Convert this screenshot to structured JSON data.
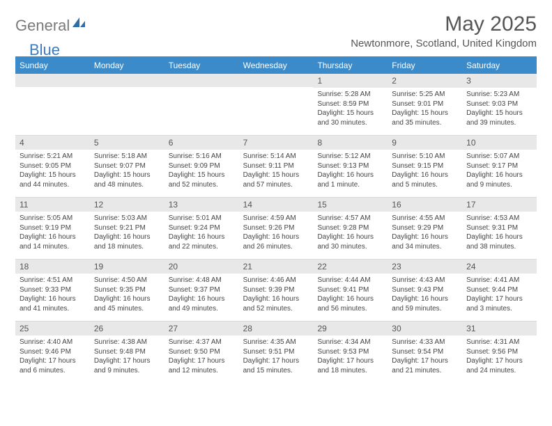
{
  "logo": {
    "general": "General",
    "blue": "Blue"
  },
  "title": "May 2025",
  "location": "Newtonmore, Scotland, United Kingdom",
  "day_names": [
    "Sunday",
    "Monday",
    "Tuesday",
    "Wednesday",
    "Thursday",
    "Friday",
    "Saturday"
  ],
  "header_bg": "#3b8bca",
  "cell_num_bg": "#e8e8e8",
  "weeks": [
    [
      {
        "day": "",
        "sunrise": "",
        "sunset": "",
        "daylight": ""
      },
      {
        "day": "",
        "sunrise": "",
        "sunset": "",
        "daylight": ""
      },
      {
        "day": "",
        "sunrise": "",
        "sunset": "",
        "daylight": ""
      },
      {
        "day": "",
        "sunrise": "",
        "sunset": "",
        "daylight": ""
      },
      {
        "day": "1",
        "sunrise": "Sunrise: 5:28 AM",
        "sunset": "Sunset: 8:59 PM",
        "daylight": "Daylight: 15 hours and 30 minutes."
      },
      {
        "day": "2",
        "sunrise": "Sunrise: 5:25 AM",
        "sunset": "Sunset: 9:01 PM",
        "daylight": "Daylight: 15 hours and 35 minutes."
      },
      {
        "day": "3",
        "sunrise": "Sunrise: 5:23 AM",
        "sunset": "Sunset: 9:03 PM",
        "daylight": "Daylight: 15 hours and 39 minutes."
      }
    ],
    [
      {
        "day": "4",
        "sunrise": "Sunrise: 5:21 AM",
        "sunset": "Sunset: 9:05 PM",
        "daylight": "Daylight: 15 hours and 44 minutes."
      },
      {
        "day": "5",
        "sunrise": "Sunrise: 5:18 AM",
        "sunset": "Sunset: 9:07 PM",
        "daylight": "Daylight: 15 hours and 48 minutes."
      },
      {
        "day": "6",
        "sunrise": "Sunrise: 5:16 AM",
        "sunset": "Sunset: 9:09 PM",
        "daylight": "Daylight: 15 hours and 52 minutes."
      },
      {
        "day": "7",
        "sunrise": "Sunrise: 5:14 AM",
        "sunset": "Sunset: 9:11 PM",
        "daylight": "Daylight: 15 hours and 57 minutes."
      },
      {
        "day": "8",
        "sunrise": "Sunrise: 5:12 AM",
        "sunset": "Sunset: 9:13 PM",
        "daylight": "Daylight: 16 hours and 1 minute."
      },
      {
        "day": "9",
        "sunrise": "Sunrise: 5:10 AM",
        "sunset": "Sunset: 9:15 PM",
        "daylight": "Daylight: 16 hours and 5 minutes."
      },
      {
        "day": "10",
        "sunrise": "Sunrise: 5:07 AM",
        "sunset": "Sunset: 9:17 PM",
        "daylight": "Daylight: 16 hours and 9 minutes."
      }
    ],
    [
      {
        "day": "11",
        "sunrise": "Sunrise: 5:05 AM",
        "sunset": "Sunset: 9:19 PM",
        "daylight": "Daylight: 16 hours and 14 minutes."
      },
      {
        "day": "12",
        "sunrise": "Sunrise: 5:03 AM",
        "sunset": "Sunset: 9:21 PM",
        "daylight": "Daylight: 16 hours and 18 minutes."
      },
      {
        "day": "13",
        "sunrise": "Sunrise: 5:01 AM",
        "sunset": "Sunset: 9:24 PM",
        "daylight": "Daylight: 16 hours and 22 minutes."
      },
      {
        "day": "14",
        "sunrise": "Sunrise: 4:59 AM",
        "sunset": "Sunset: 9:26 PM",
        "daylight": "Daylight: 16 hours and 26 minutes."
      },
      {
        "day": "15",
        "sunrise": "Sunrise: 4:57 AM",
        "sunset": "Sunset: 9:28 PM",
        "daylight": "Daylight: 16 hours and 30 minutes."
      },
      {
        "day": "16",
        "sunrise": "Sunrise: 4:55 AM",
        "sunset": "Sunset: 9:29 PM",
        "daylight": "Daylight: 16 hours and 34 minutes."
      },
      {
        "day": "17",
        "sunrise": "Sunrise: 4:53 AM",
        "sunset": "Sunset: 9:31 PM",
        "daylight": "Daylight: 16 hours and 38 minutes."
      }
    ],
    [
      {
        "day": "18",
        "sunrise": "Sunrise: 4:51 AM",
        "sunset": "Sunset: 9:33 PM",
        "daylight": "Daylight: 16 hours and 41 minutes."
      },
      {
        "day": "19",
        "sunrise": "Sunrise: 4:50 AM",
        "sunset": "Sunset: 9:35 PM",
        "daylight": "Daylight: 16 hours and 45 minutes."
      },
      {
        "day": "20",
        "sunrise": "Sunrise: 4:48 AM",
        "sunset": "Sunset: 9:37 PM",
        "daylight": "Daylight: 16 hours and 49 minutes."
      },
      {
        "day": "21",
        "sunrise": "Sunrise: 4:46 AM",
        "sunset": "Sunset: 9:39 PM",
        "daylight": "Daylight: 16 hours and 52 minutes."
      },
      {
        "day": "22",
        "sunrise": "Sunrise: 4:44 AM",
        "sunset": "Sunset: 9:41 PM",
        "daylight": "Daylight: 16 hours and 56 minutes."
      },
      {
        "day": "23",
        "sunrise": "Sunrise: 4:43 AM",
        "sunset": "Sunset: 9:43 PM",
        "daylight": "Daylight: 16 hours and 59 minutes."
      },
      {
        "day": "24",
        "sunrise": "Sunrise: 4:41 AM",
        "sunset": "Sunset: 9:44 PM",
        "daylight": "Daylight: 17 hours and 3 minutes."
      }
    ],
    [
      {
        "day": "25",
        "sunrise": "Sunrise: 4:40 AM",
        "sunset": "Sunset: 9:46 PM",
        "daylight": "Daylight: 17 hours and 6 minutes."
      },
      {
        "day": "26",
        "sunrise": "Sunrise: 4:38 AM",
        "sunset": "Sunset: 9:48 PM",
        "daylight": "Daylight: 17 hours and 9 minutes."
      },
      {
        "day": "27",
        "sunrise": "Sunrise: 4:37 AM",
        "sunset": "Sunset: 9:50 PM",
        "daylight": "Daylight: 17 hours and 12 minutes."
      },
      {
        "day": "28",
        "sunrise": "Sunrise: 4:35 AM",
        "sunset": "Sunset: 9:51 PM",
        "daylight": "Daylight: 17 hours and 15 minutes."
      },
      {
        "day": "29",
        "sunrise": "Sunrise: 4:34 AM",
        "sunset": "Sunset: 9:53 PM",
        "daylight": "Daylight: 17 hours and 18 minutes."
      },
      {
        "day": "30",
        "sunrise": "Sunrise: 4:33 AM",
        "sunset": "Sunset: 9:54 PM",
        "daylight": "Daylight: 17 hours and 21 minutes."
      },
      {
        "day": "31",
        "sunrise": "Sunrise: 4:31 AM",
        "sunset": "Sunset: 9:56 PM",
        "daylight": "Daylight: 17 hours and 24 minutes."
      }
    ]
  ]
}
